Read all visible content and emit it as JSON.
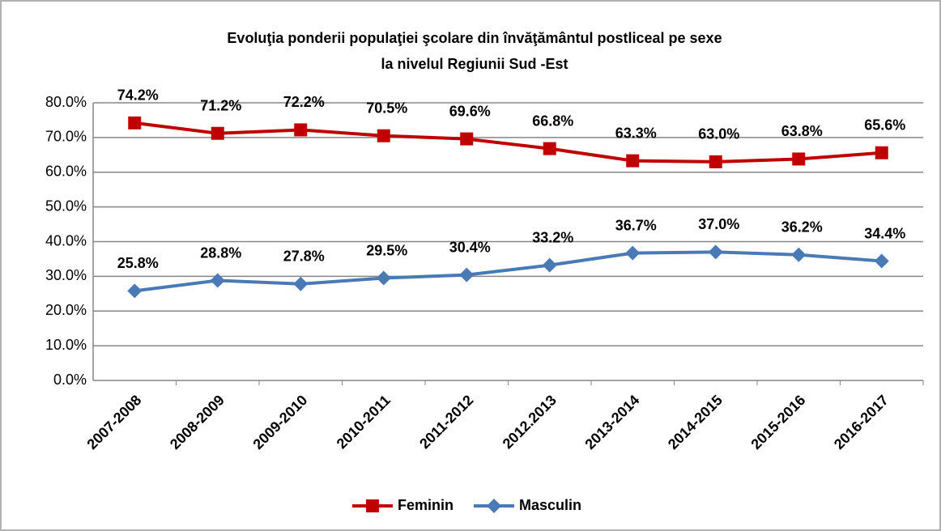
{
  "chart_data": {
    "type": "line",
    "title": [
      "Evoluţia ponderii populaţiei şcolare din învăţământul postliceal pe sexe",
      "la nivelul Regiunii Sud -Est"
    ],
    "categories": [
      "2007-2008",
      "2008-2009",
      "2009-2010",
      "2010-2011",
      "2011-2012",
      "2012.2013",
      "2013-2014",
      "2014-2015",
      "2015-2016",
      "2016-2017"
    ],
    "series": [
      {
        "name": "Feminin",
        "color": "#c00000",
        "marker": "square",
        "values": [
          74.2,
          71.2,
          72.2,
          70.5,
          69.6,
          66.8,
          63.3,
          63.0,
          63.8,
          65.6
        ],
        "value_labels": [
          "74.2%",
          "71.2%",
          "72.2%",
          "70.5%",
          "69.6%",
          "66.8%",
          "63.3%",
          "63.0%",
          "63.8%",
          "65.6%"
        ]
      },
      {
        "name": "Masculin",
        "color": "#4a7ab5",
        "marker": "diamond",
        "values": [
          25.8,
          28.8,
          27.8,
          29.5,
          30.4,
          33.2,
          36.7,
          37.0,
          36.2,
          34.4
        ],
        "value_labels": [
          "25.8%",
          "28.8%",
          "27.8%",
          "29.5%",
          "30.4%",
          "33.2%",
          "36.7%",
          "37.0%",
          "36.2%",
          "34.4%"
        ]
      }
    ],
    "ylim": [
      0,
      80
    ],
    "yticks": [
      {
        "value": 0,
        "label": "0.0%"
      },
      {
        "value": 10,
        "label": "10.0%"
      },
      {
        "value": 20,
        "label": "20.0%"
      },
      {
        "value": 30,
        "label": "30.0%"
      },
      {
        "value": 40,
        "label": "40.0%"
      },
      {
        "value": 50,
        "label": "50.0%"
      },
      {
        "value": 60,
        "label": "60.0%"
      },
      {
        "value": 70,
        "label": "70.0%"
      },
      {
        "value": 80,
        "label": "80.0%"
      }
    ],
    "grid": true,
    "legend": "bottom"
  }
}
